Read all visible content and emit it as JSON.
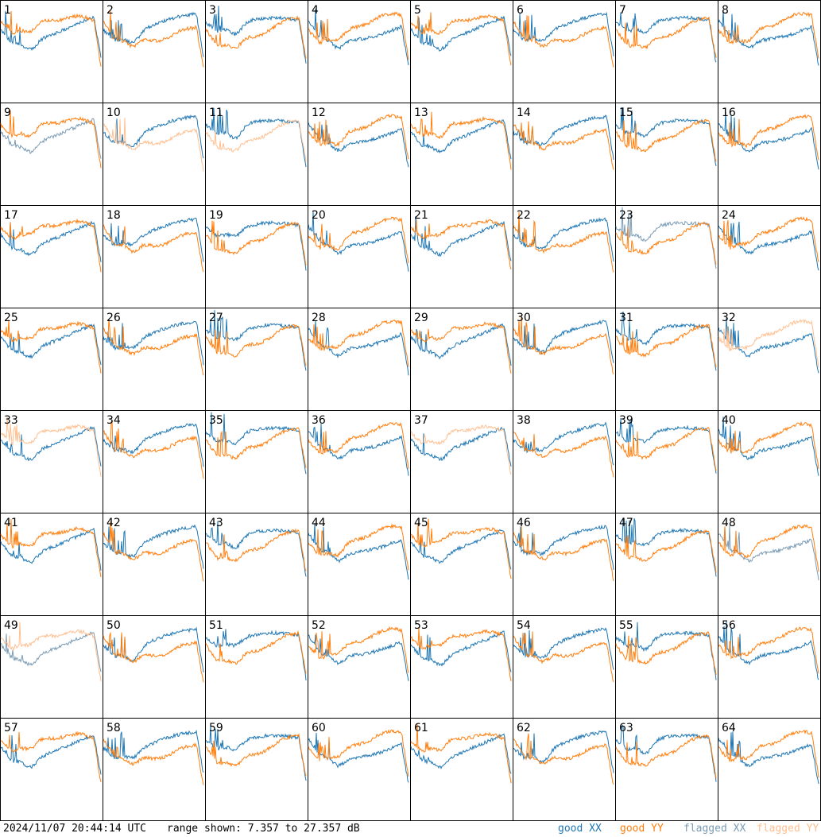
{
  "chart_data": {
    "type": "line",
    "layout": "8x8 grid of small multiples, one panel per input",
    "panels": 64,
    "panel_labels": [
      "1",
      "2",
      "3",
      "4",
      "5",
      "6",
      "7",
      "8",
      "9",
      "10",
      "11",
      "12",
      "13",
      "14",
      "15",
      "16",
      "17",
      "18",
      "19",
      "20",
      "21",
      "22",
      "23",
      "24",
      "25",
      "26",
      "27",
      "28",
      "29",
      "30",
      "31",
      "32",
      "33",
      "34",
      "35",
      "36",
      "37",
      "38",
      "39",
      "40",
      "41",
      "42",
      "43",
      "44",
      "45",
      "46",
      "47",
      "48",
      "49",
      "50",
      "51",
      "52",
      "53",
      "54",
      "55",
      "56",
      "57",
      "58",
      "59",
      "60",
      "61",
      "62",
      "63",
      "64"
    ],
    "y_range_db": [
      7.357,
      27.357
    ],
    "series_names": [
      "good XX",
      "good YY",
      "flagged XX",
      "flagged YY"
    ],
    "colors": {
      "good_xx": "#1f77b4",
      "good_yy": "#ff7f0e",
      "flagged_xx": "#7a9bb5",
      "flagged_yy": "#ffbf8f"
    },
    "flagged_xx_panels": [
      9,
      23,
      48,
      49
    ],
    "flagged_yy_panels": [
      10,
      11,
      32,
      33,
      37,
      49
    ],
    "grid": false
  },
  "footer": {
    "timestamp": "2024/11/07 20:44:14 UTC",
    "range_text": "range shown: 7.357 to 27.357 dB",
    "legend": {
      "good_xx": "good XX",
      "good_yy": "good YY",
      "flagged_xx": "flagged XX",
      "flagged_yy": "flagged YY"
    }
  }
}
